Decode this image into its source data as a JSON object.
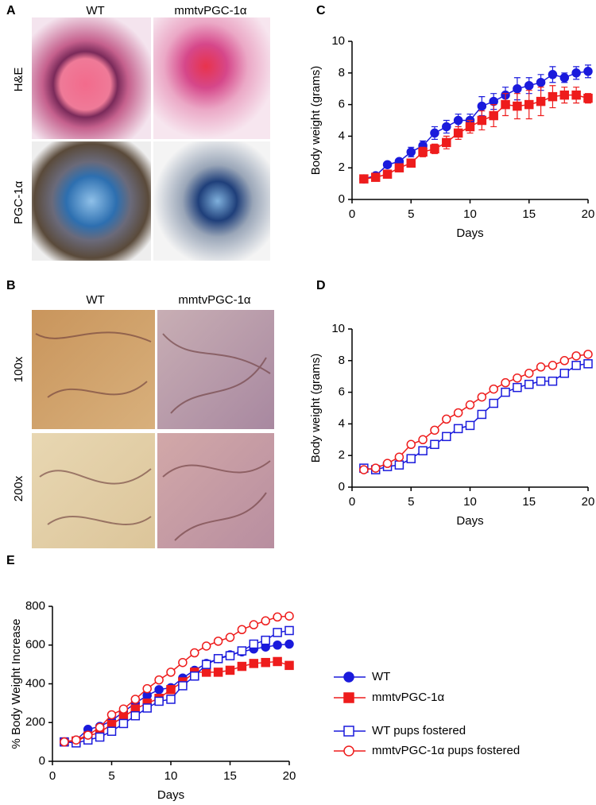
{
  "panel_a": {
    "letter": "A",
    "columns": [
      "WT",
      "mmtvPGC-1α"
    ],
    "rows": [
      "H&E",
      "PGC-1α"
    ]
  },
  "panel_b": {
    "letter": "B",
    "columns": [
      "WT",
      "mmtvPGC-1α"
    ],
    "rows": [
      "100x",
      "200x"
    ]
  },
  "chart_data": [
    {
      "type": "line",
      "label": "C",
      "y_label": "Body weight (grams)",
      "x_label": "Days",
      "xlim": [
        0,
        20
      ],
      "xticks": [
        0,
        5,
        10,
        15,
        20
      ],
      "ylim": [
        0,
        10
      ],
      "yticks": [
        0,
        2,
        4,
        6,
        8,
        10
      ],
      "x": [
        1,
        2,
        3,
        4,
        5,
        6,
        7,
        8,
        9,
        10,
        11,
        12,
        13,
        14,
        15,
        16,
        17,
        18,
        19,
        20
      ],
      "series": [
        {
          "color": "#1a1adc",
          "marker": "circle",
          "filled": true,
          "values": [
            1.3,
            1.5,
            2.2,
            2.4,
            3.0,
            3.4,
            4.2,
            4.6,
            5.0,
            5.0,
            5.9,
            6.2,
            6.6,
            7.0,
            7.2,
            7.4,
            7.9,
            7.7,
            8.0,
            8.1
          ],
          "errors": [
            0.1,
            0.1,
            0.1,
            0.15,
            0.3,
            0.3,
            0.4,
            0.4,
            0.4,
            0.4,
            0.6,
            0.5,
            0.5,
            0.7,
            0.5,
            0.5,
            0.5,
            0.3,
            0.4,
            0.4
          ]
        },
        {
          "color": "#ee1c1c",
          "marker": "square",
          "filled": true,
          "values": [
            1.3,
            1.4,
            1.6,
            2.0,
            2.3,
            3.0,
            3.2,
            3.6,
            4.2,
            4.6,
            5.0,
            5.3,
            6.0,
            5.9,
            6.0,
            6.2,
            6.5,
            6.6,
            6.6,
            6.4
          ],
          "errors": [
            0.1,
            0.1,
            0.1,
            0.15,
            0.2,
            0.3,
            0.3,
            0.4,
            0.4,
            0.4,
            0.6,
            0.7,
            0.7,
            0.8,
            0.9,
            0.9,
            0.7,
            0.5,
            0.5,
            0.3
          ]
        }
      ]
    },
    {
      "type": "line",
      "label": "D",
      "y_label": "Body weight (grams)",
      "x_label": "Days",
      "xlim": [
        0,
        20
      ],
      "xticks": [
        0,
        5,
        10,
        15,
        20
      ],
      "ylim": [
        0,
        10
      ],
      "yticks": [
        0,
        2,
        4,
        6,
        8,
        10
      ],
      "x": [
        1,
        2,
        3,
        4,
        5,
        6,
        7,
        8,
        9,
        10,
        11,
        12,
        13,
        14,
        15,
        16,
        17,
        18,
        19,
        20
      ],
      "series": [
        {
          "color": "#1a1adc",
          "marker": "square",
          "filled": false,
          "values": [
            1.2,
            1.1,
            1.3,
            1.4,
            1.8,
            2.3,
            2.7,
            3.2,
            3.7,
            3.9,
            4.6,
            5.3,
            6.0,
            6.3,
            6.5,
            6.7,
            6.7,
            7.2,
            7.7,
            7.8
          ]
        },
        {
          "color": "#ee1c1c",
          "marker": "circle",
          "filled": false,
          "values": [
            1.1,
            1.2,
            1.5,
            1.9,
            2.7,
            3.0,
            3.6,
            4.3,
            4.7,
            5.2,
            5.7,
            6.2,
            6.6,
            6.9,
            7.2,
            7.6,
            7.7,
            8.0,
            8.3,
            8.4
          ]
        }
      ]
    },
    {
      "type": "line",
      "label": "E",
      "y_label": "% Body Weight Increase",
      "x_label": "Days",
      "xlim": [
        0,
        20
      ],
      "xticks": [
        0,
        5,
        10,
        15,
        20
      ],
      "ylim": [
        0,
        800
      ],
      "yticks": [
        0,
        200,
        400,
        600,
        800
      ],
      "legend": "right",
      "x": [
        1,
        2,
        3,
        4,
        5,
        6,
        7,
        8,
        9,
        10,
        11,
        12,
        13,
        14,
        15,
        16,
        17,
        18,
        19,
        20
      ],
      "series": [
        {
          "name": "WT",
          "color": "#1a1adc",
          "marker": "circle",
          "filled": true,
          "values": [
            100,
            110,
            165,
            180,
            210,
            255,
            300,
            340,
            370,
            380,
            430,
            470,
            505,
            530,
            550,
            565,
            580,
            590,
            600,
            605
          ]
        },
        {
          "name": "mmtvPGC-1α",
          "color": "#ee1c1c",
          "marker": "square",
          "filled": true,
          "values": [
            100,
            105,
            130,
            150,
            190,
            230,
            270,
            300,
            325,
            370,
            410,
            460,
            460,
            460,
            470,
            490,
            505,
            510,
            515,
            495
          ]
        },
        {
          "name": "WT pups fostered",
          "color": "#1a1adc",
          "marker": "square",
          "filled": false,
          "values": [
            100,
            95,
            110,
            125,
            155,
            195,
            235,
            275,
            310,
            320,
            390,
            440,
            500,
            530,
            545,
            570,
            605,
            625,
            665,
            675
          ]
        },
        {
          "name": "mmtvPGC-1α pups fostered",
          "color": "#ee1c1c",
          "marker": "circle",
          "filled": false,
          "values": [
            100,
            110,
            135,
            175,
            240,
            270,
            320,
            375,
            420,
            460,
            510,
            560,
            595,
            620,
            640,
            680,
            705,
            725,
            745,
            750
          ]
        }
      ]
    }
  ]
}
